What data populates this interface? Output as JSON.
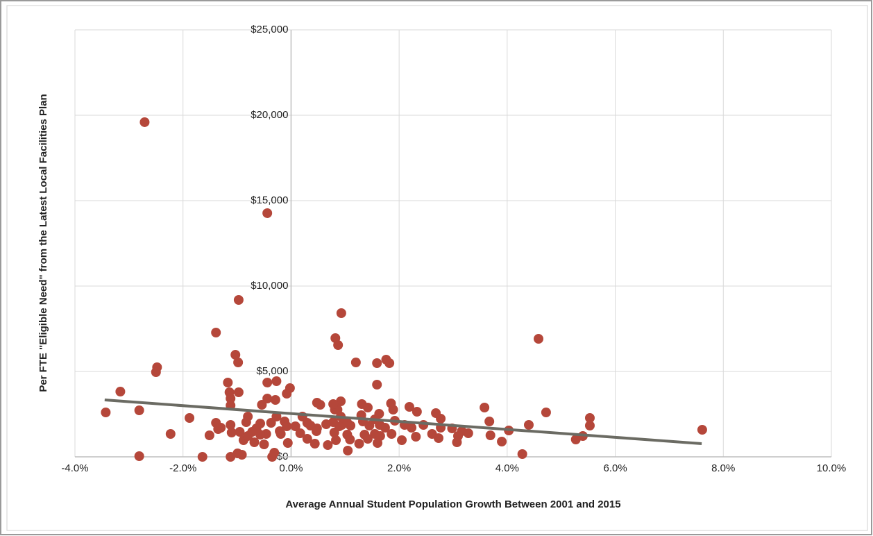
{
  "chart_data": {
    "type": "scatter",
    "x_label": "Average Annual Student Population Growth Between 2001 and 2015",
    "y_label": "Per FTE \"Eligible Need\" from the Latest Local Facilities Plan",
    "color": "#b5473a",
    "x": [
      -2.71,
      -0.44,
      -0.97,
      0.93,
      -1.39,
      4.58,
      0.82,
      0.87,
      -1.03,
      -0.98,
      -2.48,
      -2.5,
      1.2,
      1.76,
      1.82,
      1.59,
      1.59,
      -3.16,
      -1.17,
      -0.44,
      -0.27,
      -0.02,
      -0.08,
      -1.14,
      -0.97,
      -1.12,
      -0.44,
      -0.29,
      0.48,
      0.54,
      -0.54,
      -1.12,
      0.92,
      1.31,
      1.42,
      1.85,
      1.89,
      2.19,
      2.33,
      3.58,
      2.68,
      -3.43,
      -2.81,
      1.63,
      0.81,
      0.86,
      -1.88,
      -0.8,
      -0.27,
      0.21,
      2.77,
      3.67,
      5.53,
      4.72,
      -1.39,
      -1.3,
      -1.35,
      -1.12,
      -0.83,
      -0.57,
      -0.64,
      -0.37,
      -0.12,
      -0.08,
      -0.21,
      0.08,
      0.3,
      0.36,
      0.48,
      0.65,
      0.78,
      0.94,
      1.04,
      1.1,
      1.33,
      1.45,
      1.64,
      1.74,
      1.92,
      2.1,
      2.23,
      2.45,
      2.77,
      2.98,
      3.16,
      3.28,
      4.03,
      4.4,
      5.53,
      7.61,
      -2.23,
      -1.51,
      -1.1,
      -0.95,
      -0.72,
      -0.46,
      -0.19,
      0.17,
      0.47,
      0.8,
      1.04,
      1.36,
      1.55,
      1.65,
      1.86,
      2.31,
      2.61,
      2.73,
      3.09,
      3.69,
      5.4,
      5.27,
      -0.88,
      -0.68,
      -0.06,
      0.3,
      0.44,
      0.68,
      1.09,
      1.26,
      1.42,
      1.6,
      2.05,
      3.07,
      3.9,
      1.05,
      4.28,
      -2.81,
      -1.64,
      -1.12,
      -0.99,
      -0.91,
      -0.35,
      -0.31,
      0.78,
      0.92,
      0.89,
      0.83,
      1.3,
      1.55,
      -0.8,
      -0.57,
      -0.5
    ],
    "values": [
      19594,
      14268,
      9187,
      8415,
      7276,
      6911,
      6951,
      6545,
      5976,
      5528,
      5244,
      4959,
      5528,
      5691,
      5488,
      5488,
      4228,
      3821,
      4350,
      4350,
      4431,
      4024,
      3699,
      3780,
      3780,
      3415,
      3415,
      3333,
      3171,
      3049,
      3049,
      3008,
      3252,
      3089,
      2886,
      3130,
      2764,
      2927,
      2642,
      2886,
      2561,
      2602,
      2724,
      2520,
      2764,
      2764,
      2276,
      2358,
      2358,
      2358,
      2236,
      2073,
      2276,
      2602,
      1992,
      1707,
      1626,
      1870,
      2032,
      1951,
      1667,
      1992,
      2073,
      1789,
      1504,
      1789,
      1992,
      1829,
      1667,
      1911,
      2032,
      1870,
      1992,
      1829,
      2073,
      1829,
      1870,
      1707,
      2114,
      1870,
      1707,
      1870,
      1707,
      1667,
      1504,
      1382,
      1545,
      1870,
      1829,
      1585,
      1341,
      1260,
      1423,
      1463,
      1463,
      1341,
      1341,
      1382,
      1504,
      1423,
      1301,
      1301,
      1341,
      1220,
      1341,
      1179,
      1341,
      1098,
      1220,
      1260,
      1220,
      1016,
      976,
      854,
      813,
      1057,
      772,
      691,
      1016,
      772,
      1057,
      813,
      976,
      854,
      894,
      366,
      163,
      41,
      0,
      0,
      203,
      122,
      0,
      244,
      3089,
      2358,
      1789,
      976,
      2439,
      2195,
      1220,
      1301,
      732
    ],
    "trendline": {
      "x": [
        -3.45,
        7.6
      ],
      "values": [
        3333,
        772
      ],
      "color": "#6b6b63"
    },
    "xlim": [
      -4,
      10
    ],
    "xticks": [
      {
        "value": -4,
        "label": "-4.0%"
      },
      {
        "value": -2,
        "label": "-2.0%"
      },
      {
        "value": 0,
        "label": "0.0%"
      },
      {
        "value": 2,
        "label": "2.0%"
      },
      {
        "value": 4,
        "label": "4.0%"
      },
      {
        "value": 6,
        "label": "6.0%"
      },
      {
        "value": 8,
        "label": "8.0%"
      },
      {
        "value": 10,
        "label": "10.0%"
      }
    ],
    "ylim": [
      0,
      25000
    ],
    "yticks": [
      {
        "value": 0,
        "label": "$0"
      },
      {
        "value": 5000,
        "label": "$5,000"
      },
      {
        "value": 10000,
        "label": "$10,000"
      },
      {
        "value": 15000,
        "label": "$15,000"
      },
      {
        "value": 20000,
        "label": "$20,000"
      },
      {
        "value": 25000,
        "label": "$25,000"
      }
    ],
    "grid": true
  }
}
